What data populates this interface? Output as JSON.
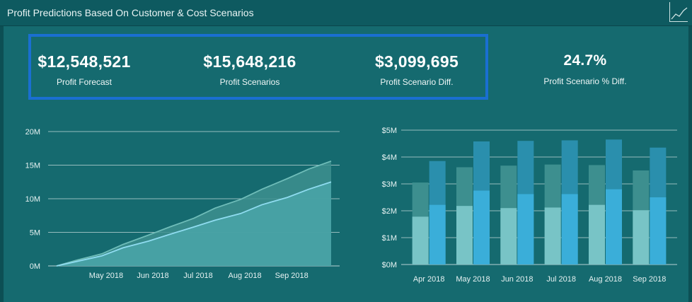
{
  "title": "Profit Predictions Based On Customer & Cost Scenarios",
  "icons": {
    "header": "line-chart-icon"
  },
  "colors": {
    "background": "#0c4f54",
    "panel": "#156a6f",
    "highlight_border": "#1a6fd1",
    "forecast": "#78c4c6",
    "scenario": "#3aaed9",
    "forecast_dark": "#3d8f8f",
    "scenario_dark": "#2a8fad"
  },
  "kpis": [
    {
      "value": "$12,548,521",
      "label": "Profit Forecast"
    },
    {
      "value": "$15,648,216",
      "label": "Profit Scenarios"
    },
    {
      "value": "$3,099,695",
      "label": "Profit Scenario Diff."
    },
    {
      "value": "24.7%",
      "label": "Profit Scenario % Diff."
    }
  ],
  "chart_data": [
    {
      "type": "area",
      "x_ticks": [
        "May 2018",
        "Jun 2018",
        "Jul 2018",
        "Aug 2018",
        "Sep 2018"
      ],
      "y_ticks": [
        "0M",
        "5M",
        "10M",
        "15M",
        "20M"
      ],
      "ylim": [
        0,
        20
      ],
      "y_unit": "M",
      "grid": true,
      "x": [
        "2018-04-01",
        "2018-04-15",
        "2018-05-01",
        "2018-05-15",
        "2018-06-01",
        "2018-06-15",
        "2018-07-01",
        "2018-07-15",
        "2018-08-01",
        "2018-08-15",
        "2018-09-01",
        "2018-09-15",
        "2018-09-30"
      ],
      "series": [
        {
          "values": [
            0.0,
            0.9,
            1.8,
            3.2,
            4.6,
            5.8,
            7.1,
            8.6,
            9.9,
            11.4,
            13.0,
            14.4,
            15.6
          ]
        },
        {
          "values": [
            0.0,
            0.7,
            1.5,
            2.7,
            3.7,
            4.7,
            5.8,
            6.8,
            7.8,
            9.1,
            10.2,
            11.4,
            12.5
          ]
        }
      ]
    },
    {
      "type": "bar",
      "categories": [
        "Apr 2018",
        "May 2018",
        "Jun 2018",
        "Jul 2018",
        "Aug 2018",
        "Sep 2018"
      ],
      "y_ticks": [
        "$0M",
        "$1M",
        "$2M",
        "$3M",
        "$4M",
        "$5M"
      ],
      "ylim": [
        0,
        5
      ],
      "y_unit": "$M",
      "grid": true,
      "series": [
        {
          "totals": [
            3.05,
            3.62,
            3.68,
            3.72,
            3.7,
            3.5
          ],
          "values": [
            1.78,
            2.18,
            2.1,
            2.12,
            2.22,
            2.02
          ]
        },
        {
          "totals": [
            3.85,
            4.58,
            4.6,
            4.62,
            4.65,
            4.35
          ],
          "values": [
            2.22,
            2.75,
            2.62,
            2.62,
            2.8,
            2.5
          ]
        }
      ]
    }
  ]
}
